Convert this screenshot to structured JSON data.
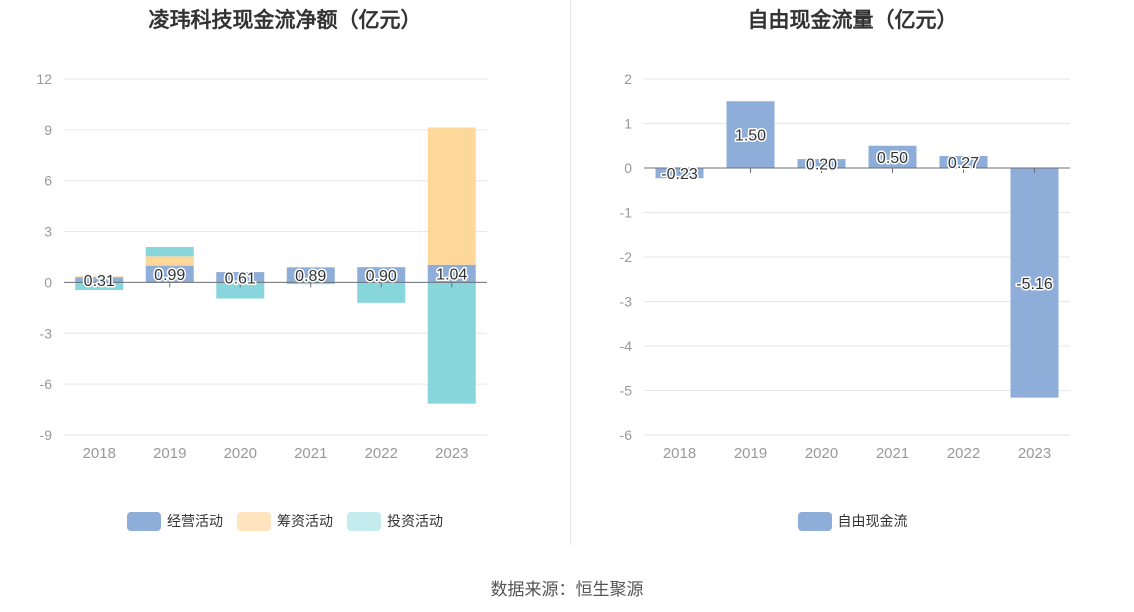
{
  "chart_data": [
    {
      "type": "bar",
      "stacked": true,
      "title": "凌玮科技现金流净额（亿元）",
      "categories": [
        "2018",
        "2019",
        "2020",
        "2021",
        "2022",
        "2023"
      ],
      "ylim": [
        -9,
        12
      ],
      "yticks": [
        -9,
        -6,
        -3,
        0,
        3,
        6,
        9,
        12
      ],
      "grid": true,
      "legend_position": "bottom",
      "series": [
        {
          "name": "经营活动",
          "color": "#8eadd8",
          "values": [
            0.31,
            0.99,
            0.61,
            0.89,
            0.9,
            1.04
          ],
          "labels": [
            "0.31",
            "0.99",
            "0.61",
            "0.89",
            "0.90",
            "1.04"
          ]
        },
        {
          "name": "筹资活动",
          "color": "#fdd89a",
          "values": [
            0.05,
            0.55,
            0.0,
            0.0,
            0.0,
            8.1
          ]
        },
        {
          "name": "投资活动",
          "color": "#86d6db",
          "values": [
            -0.45,
            0.55,
            -0.95,
            -0.1,
            -1.2,
            -7.15
          ]
        }
      ]
    },
    {
      "type": "bar",
      "title": "自由现金流量（亿元）",
      "categories": [
        "2018",
        "2019",
        "2020",
        "2021",
        "2022",
        "2023"
      ],
      "ylim": [
        -6,
        2
      ],
      "yticks": [
        -6,
        -5,
        -4,
        -3,
        -2,
        -1,
        0,
        1,
        2
      ],
      "grid": true,
      "legend_position": "bottom",
      "series": [
        {
          "name": "自由现金流",
          "color": "#8eadd8",
          "values": [
            -0.23,
            1.5,
            0.2,
            0.5,
            0.27,
            -5.16
          ],
          "labels": [
            "-0.23",
            "1.50",
            "0.20",
            "0.50",
            "0.27",
            "-5.16"
          ]
        }
      ]
    }
  ],
  "source": "数据来源：恒生聚源"
}
